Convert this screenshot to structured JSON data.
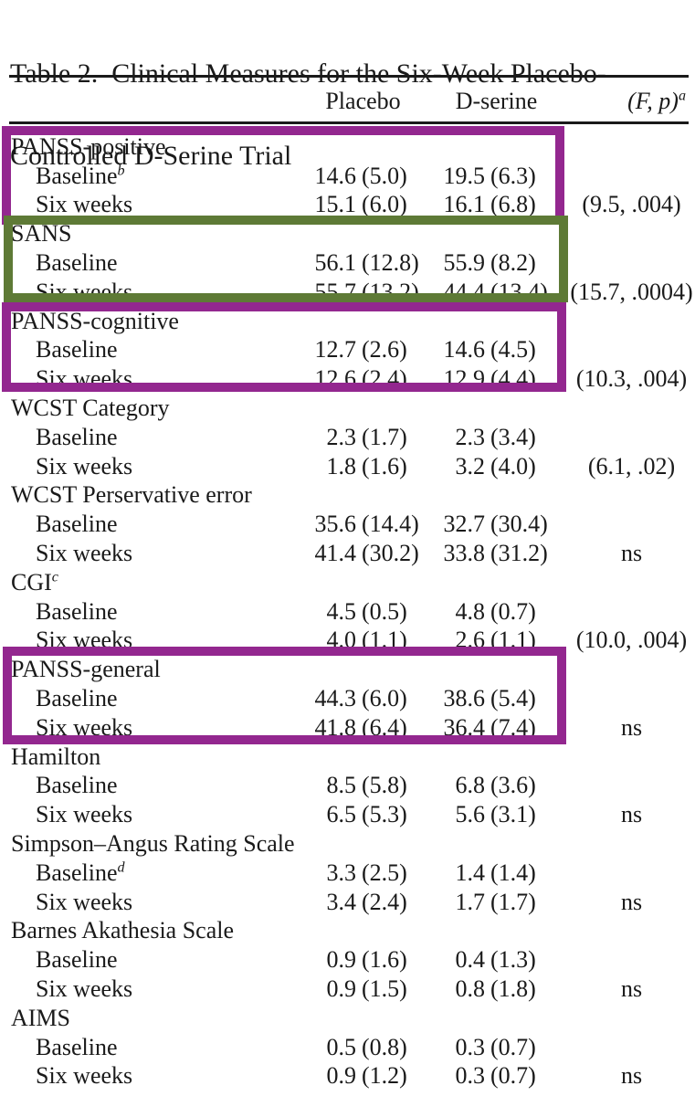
{
  "title": {
    "line1": "Table 2.  Clinical Measures for the Six-Week Placebo-",
    "line2": "Controlled D-Serine Trial"
  },
  "header": {
    "placebo": "Placebo",
    "dserine": "D-serine",
    "fp_label": "(F, p)",
    "fp_sup": "a"
  },
  "table": {
    "rows": [
      {
        "label": "PANSS-positive",
        "sup": "",
        "indent": false,
        "placebo": "",
        "dserine": "",
        "fp": ""
      },
      {
        "label": "Baseline",
        "sup": "b",
        "indent": true,
        "placebo": "14.6 (5.0)",
        "dserine": "19.5 (6.3)",
        "fp": ""
      },
      {
        "label": "Six weeks",
        "sup": "",
        "indent": true,
        "placebo": "15.1 (6.0)",
        "dserine": "16.1 (6.8)",
        "fp": "(9.5, .004)"
      },
      {
        "label": "SANS",
        "sup": "",
        "indent": false,
        "placebo": "",
        "dserine": "",
        "fp": ""
      },
      {
        "label": "Baseline",
        "sup": "",
        "indent": true,
        "placebo": "56.1 (12.8)",
        "dserine": "55.9 (8.2)",
        "fp": ""
      },
      {
        "label": "Six weeks",
        "sup": "",
        "indent": true,
        "placebo": "55.7 (13.2)",
        "dserine": "44.4 (13.4)",
        "fp": "(15.7, .0004)"
      },
      {
        "label": "PANSS-cognitive",
        "sup": "",
        "indent": false,
        "placebo": "",
        "dserine": "",
        "fp": ""
      },
      {
        "label": "Baseline",
        "sup": "",
        "indent": true,
        "placebo": "12.7 (2.6)",
        "dserine": "14.6 (4.5)",
        "fp": ""
      },
      {
        "label": "Six weeks",
        "sup": "",
        "indent": true,
        "placebo": "12.6 (2.4)",
        "dserine": "12.9 (4.4)",
        "fp": "(10.3, .004)"
      },
      {
        "label": "WCST Category",
        "sup": "",
        "indent": false,
        "placebo": "",
        "dserine": "",
        "fp": ""
      },
      {
        "label": "Baseline",
        "sup": "",
        "indent": true,
        "placebo": "2.3 (1.7)",
        "dserine": "2.3 (3.4)",
        "fp": ""
      },
      {
        "label": "Six weeks",
        "sup": "",
        "indent": true,
        "placebo": "1.8 (1.6)",
        "dserine": "3.2 (4.0)",
        "fp": "(6.1, .02)"
      },
      {
        "label": "WCST Perservative error",
        "sup": "",
        "indent": false,
        "placebo": "",
        "dserine": "",
        "fp": ""
      },
      {
        "label": "Baseline",
        "sup": "",
        "indent": true,
        "placebo": "35.6 (14.4)",
        "dserine": "32.7 (30.4)",
        "fp": ""
      },
      {
        "label": "Six weeks",
        "sup": "",
        "indent": true,
        "placebo": "41.4 (30.2)",
        "dserine": "33.8 (31.2)",
        "fp": "ns"
      },
      {
        "label": "CGI",
        "sup": "c",
        "indent": false,
        "placebo": "",
        "dserine": "",
        "fp": ""
      },
      {
        "label": "Baseline",
        "sup": "",
        "indent": true,
        "placebo": "4.5 (0.5)",
        "dserine": "4.8 (0.7)",
        "fp": ""
      },
      {
        "label": "Six weeks",
        "sup": "",
        "indent": true,
        "placebo": "4.0 (1.1)",
        "dserine": "2.6 (1.1)",
        "fp": "(10.0, .004)"
      },
      {
        "label": "PANSS-general",
        "sup": "",
        "indent": false,
        "placebo": "",
        "dserine": "",
        "fp": ""
      },
      {
        "label": "Baseline",
        "sup": "",
        "indent": true,
        "placebo": "44.3 (6.0)",
        "dserine": "38.6 (5.4)",
        "fp": ""
      },
      {
        "label": "Six weeks",
        "sup": "",
        "indent": true,
        "placebo": "41.8 (6.4)",
        "dserine": "36.4 (7.4)",
        "fp": "ns"
      },
      {
        "label": "Hamilton",
        "sup": "",
        "indent": false,
        "placebo": "",
        "dserine": "",
        "fp": ""
      },
      {
        "label": "Baseline",
        "sup": "",
        "indent": true,
        "placebo": "8.5 (5.8)",
        "dserine": "6.8 (3.6)",
        "fp": ""
      },
      {
        "label": "Six weeks",
        "sup": "",
        "indent": true,
        "placebo": "6.5 (5.3)",
        "dserine": "5.6 (3.1)",
        "fp": "ns"
      },
      {
        "label": "Simpson–Angus Rating Scale",
        "sup": "",
        "indent": false,
        "placebo": "",
        "dserine": "",
        "fp": ""
      },
      {
        "label": "Baseline",
        "sup": "d",
        "indent": true,
        "placebo": "3.3 (2.5)",
        "dserine": "1.4 (1.4)",
        "fp": ""
      },
      {
        "label": "Six weeks",
        "sup": "",
        "indent": true,
        "placebo": "3.4 (2.4)",
        "dserine": "1.7 (1.7)",
        "fp": "ns"
      },
      {
        "label": "Barnes Akathesia Scale",
        "sup": "",
        "indent": false,
        "placebo": "",
        "dserine": "",
        "fp": ""
      },
      {
        "label": "Baseline",
        "sup": "",
        "indent": true,
        "placebo": "0.9 (1.6)",
        "dserine": "0.4 (1.3)",
        "fp": ""
      },
      {
        "label": "Six weeks",
        "sup": "",
        "indent": true,
        "placebo": "0.9 (1.5)",
        "dserine": "0.8 (1.8)",
        "fp": "ns"
      },
      {
        "label": "AIMS",
        "sup": "",
        "indent": false,
        "placebo": "",
        "dserine": "",
        "fp": ""
      },
      {
        "label": "Baseline",
        "sup": "",
        "indent": true,
        "placebo": "0.5 (0.8)",
        "dserine": "0.3 (0.7)",
        "fp": ""
      },
      {
        "label": "Six weeks",
        "sup": "",
        "indent": true,
        "placebo": "0.9 (1.2)",
        "dserine": "0.3 (0.7)",
        "fp": "ns"
      }
    ]
  },
  "annotations": {
    "boxes": [
      {
        "name": "panss-positive-highlight",
        "color": "#93278F"
      },
      {
        "name": "sans-highlight",
        "color": "#5E7A36"
      },
      {
        "name": "panss-cognitive-highlight",
        "color": "#93278F"
      },
      {
        "name": "panss-general-highlight",
        "color": "#93278F"
      }
    ]
  }
}
